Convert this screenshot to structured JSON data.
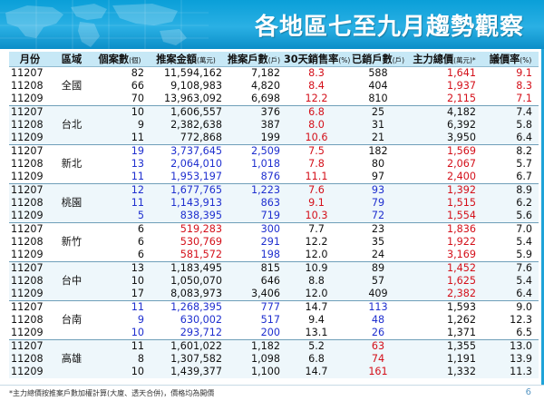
{
  "title": "各地區七至九月趨勢觀察",
  "columns": [
    {
      "label": "月份",
      "unit": ""
    },
    {
      "label": "區域",
      "unit": ""
    },
    {
      "label": "個案數",
      "unit": "(個)"
    },
    {
      "label": "推案金額",
      "unit": "(萬元)"
    },
    {
      "label": "推案戶數",
      "unit": "(戶)"
    },
    {
      "label": "30天銷售率",
      "unit": "(%)"
    },
    {
      "label": "已銷戶數",
      "unit": "(戶)"
    },
    {
      "label": "主力總價",
      "unit": "(萬元)*"
    },
    {
      "label": "議價率",
      "unit": "(%)"
    }
  ],
  "groups": [
    {
      "region": "全國",
      "rows": [
        [
          "11207",
          "82",
          "11,594,162",
          "7,182",
          "8.3",
          "588",
          "1,641",
          "9.1"
        ],
        [
          "11208",
          "66",
          "9,108,983",
          "4,820",
          "8.4",
          "404",
          "1,937",
          "8.3"
        ],
        [
          "11209",
          "70",
          "13,963,092",
          "6,698",
          "12.2",
          "810",
          "2,115",
          "7.1"
        ]
      ]
    },
    {
      "region": "台北",
      "rows": [
        [
          "11207",
          "10",
          "1,606,557",
          "376",
          "6.8",
          "25",
          "4,182",
          "7.4"
        ],
        [
          "11208",
          "9",
          "2,382,638",
          "387",
          "8.0",
          "31",
          "6,392",
          "5.8"
        ],
        [
          "11209",
          "11",
          "772,868",
          "199",
          "10.6",
          "21",
          "3,950",
          "6.4"
        ]
      ]
    },
    {
      "region": "新北",
      "rows": [
        [
          "11207",
          "19",
          "3,737,645",
          "2,509",
          "7.5",
          "182",
          "1,569",
          "8.2"
        ],
        [
          "11208",
          "13",
          "2,064,010",
          "1,018",
          "7.8",
          "80",
          "2,067",
          "5.7"
        ],
        [
          "11209",
          "11",
          "1,953,197",
          "876",
          "11.1",
          "97",
          "2,400",
          "6.7"
        ]
      ]
    },
    {
      "region": "桃園",
      "rows": [
        [
          "11207",
          "12",
          "1,677,765",
          "1,223",
          "7.6",
          "93",
          "1,392",
          "8.9"
        ],
        [
          "11208",
          "11",
          "1,143,913",
          "863",
          "9.1",
          "79",
          "1,515",
          "6.2"
        ],
        [
          "11209",
          "5",
          "838,395",
          "719",
          "10.3",
          "72",
          "1,554",
          "5.6"
        ]
      ]
    },
    {
      "region": "新竹",
      "rows": [
        [
          "11207",
          "6",
          "519,283",
          "300",
          "7.7",
          "23",
          "1,836",
          "7.0"
        ],
        [
          "11208",
          "6",
          "530,769",
          "291",
          "12.2",
          "35",
          "1,922",
          "5.4"
        ],
        [
          "11209",
          "6",
          "581,572",
          "198",
          "12.0",
          "24",
          "3,169",
          "5.9"
        ]
      ]
    },
    {
      "region": "台中",
      "rows": [
        [
          "11207",
          "13",
          "1,183,495",
          "815",
          "10.9",
          "89",
          "1,452",
          "7.6"
        ],
        [
          "11208",
          "10",
          "1,050,070",
          "646",
          "8.8",
          "57",
          "1,625",
          "5.4"
        ],
        [
          "11209",
          "17",
          "8,083,973",
          "3,406",
          "12.0",
          "409",
          "2,382",
          "6.4"
        ]
      ]
    },
    {
      "region": "台南",
      "rows": [
        [
          "11207",
          "11",
          "1,268,395",
          "777",
          "14.7",
          "113",
          "1,593",
          "9.0"
        ],
        [
          "11208",
          "9",
          "630,002",
          "517",
          "9.4",
          "48",
          "1,262",
          "12.3"
        ],
        [
          "11209",
          "10",
          "293,712",
          "200",
          "13.1",
          "26",
          "1,371",
          "6.5"
        ]
      ]
    },
    {
      "region": "高雄",
      "rows": [
        [
          "11207",
          "11",
          "1,601,022",
          "1,182",
          "5.2",
          "63",
          "1,355",
          "13.0"
        ],
        [
          "11208",
          "8",
          "1,307,582",
          "1,098",
          "6.8",
          "74",
          "1,191",
          "13.9"
        ],
        [
          "11209",
          "10",
          "1,439,377",
          "1,100",
          "14.7",
          "161",
          "1,332",
          "11.3"
        ]
      ]
    }
  ],
  "colors": {
    "header": "#1aa7e0",
    "header_band": "#c7e8f6",
    "row_alt": "#eef7fb",
    "blue": "#1f2fcf",
    "red": "#d4101a"
  },
  "highlight": {
    "全國": {
      "4": "red",
      "6": "red",
      "7": "red"
    },
    "台北": {
      "4": "red"
    },
    "新北": {
      "1": "blue",
      "2": "blue",
      "3": "blue",
      "4": "red",
      "6": "red"
    },
    "桃園": {
      "1": "blue",
      "2": "blue",
      "3": "blue",
      "4": "red",
      "5": "blue",
      "6": "red"
    },
    "新竹": {
      "2": "red",
      "3": "blue",
      "6": "red"
    },
    "台中": {
      "6": "red"
    },
    "台南": {
      "1": "blue",
      "2": "blue",
      "3": "blue",
      "5": "blue"
    },
    "高雄": {
      "5": "red"
    }
  },
  "footnote": "*主力總價按推案戶數加權計算(大廈、透天合併)，價格均為開價",
  "page_number": "6"
}
